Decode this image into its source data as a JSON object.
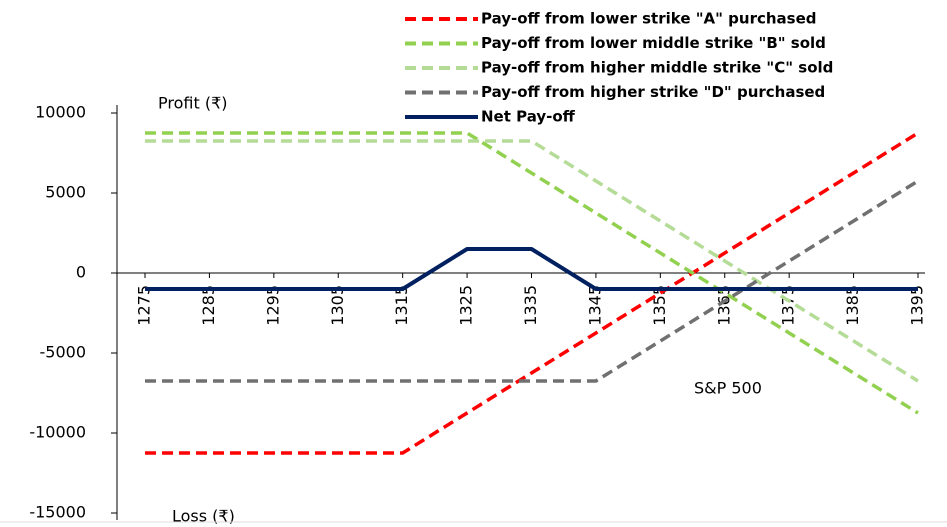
{
  "chart_data": {
    "type": "line",
    "y_label_top": "Profit (₹)",
    "y_label_bottom": "Loss (₹)",
    "x_label": "S&P 500",
    "x": [
      1275,
      1315,
      1325,
      1335,
      1345,
      1395
    ],
    "xlim": [
      1275,
      1395
    ],
    "xticks": [
      1275,
      1285,
      1295,
      1305,
      1315,
      1325,
      1335,
      1345,
      1355,
      1365,
      1375,
      1385,
      1395
    ],
    "ylim": [
      -15000,
      10000
    ],
    "yticks": [
      10000,
      5000,
      0,
      -5000,
      -10000,
      -15000
    ],
    "series": [
      {
        "name": "Pay-off from lower strike \"A\" purchased",
        "color": "#ff0000",
        "dashed": true,
        "values": [
          -11250,
          -11250,
          -8750,
          -6250,
          -3750,
          8750
        ]
      },
      {
        "name": "Pay-off from lower middle strike \"B\" sold",
        "color": "#92d050",
        "dashed": true,
        "values": [
          8750,
          8750,
          8750,
          6250,
          3750,
          -8750
        ]
      },
      {
        "name": "Pay-off from higher middle strike \"C\" sold",
        "color": "#b4dc96",
        "dashed": true,
        "values": [
          8250,
          8250,
          8250,
          8250,
          5750,
          -6750
        ]
      },
      {
        "name": "Pay-off from higher strike \"D\" purchased",
        "color": "#707070",
        "dashed": true,
        "values": [
          -6750,
          -6750,
          -6750,
          -6750,
          -6750,
          5750
        ]
      },
      {
        "name": "Net Pay-off",
        "color": "#002060",
        "dashed": false,
        "values": [
          -1000,
          -1000,
          1500,
          1500,
          -1000,
          -1000
        ]
      }
    ]
  }
}
